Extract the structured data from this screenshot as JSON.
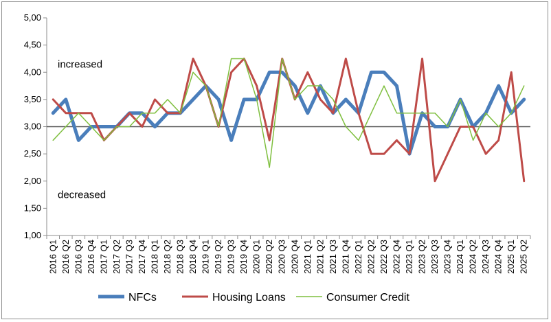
{
  "chart_data": {
    "type": "line",
    "title": "",
    "xlabel": "",
    "ylabel": "",
    "ylim": [
      1.0,
      5.0
    ],
    "yticks": [
      "1,00",
      "1,50",
      "2,00",
      "2,50",
      "3,00",
      "3,50",
      "4,00",
      "4,50",
      "5,00"
    ],
    "grid": false,
    "legend_position": "bottom",
    "annotations": [
      {
        "text": "increased",
        "y": 4.15
      },
      {
        "text": "decreased",
        "y": 1.75
      }
    ],
    "categories": [
      "2016 Q1",
      "2016 Q2",
      "2016 Q3",
      "2016 Q4",
      "2017 Q1",
      "2017 Q2",
      "2017 Q3",
      "2017 Q4",
      "2018 Q1",
      "2018 Q2",
      "2018 Q3",
      "2018 Q4",
      "2019 Q1",
      "2019 Q2",
      "2019 Q3",
      "2019 Q4",
      "2020 Q1",
      "2020 Q2",
      "2020 Q3",
      "2020 Q4",
      "2021 Q1",
      "2021 Q2",
      "2021 Q3",
      "2021 Q4",
      "2022 Q1",
      "2022 Q2",
      "2022 Q3",
      "2022 Q4",
      "2023 Q1",
      "2023 Q2",
      "2023 Q3",
      "2023 Q4",
      "2024 Q1",
      "2024 Q2",
      "2024 Q3",
      "2024 Q4",
      "2025 Q1",
      "2025 Q2"
    ],
    "series": [
      {
        "name": "NFCs",
        "color": "#4a7ebb",
        "width": 5,
        "values": [
          3.25,
          3.5,
          2.75,
          3.0,
          3.0,
          3.0,
          3.25,
          3.25,
          3.0,
          3.25,
          3.25,
          3.5,
          3.75,
          3.5,
          2.75,
          3.5,
          3.5,
          4.0,
          4.0,
          3.75,
          3.25,
          3.75,
          3.25,
          3.5,
          3.25,
          4.0,
          4.0,
          3.75,
          2.5,
          3.25,
          3.0,
          3.0,
          3.5,
          3.0,
          3.25,
          3.75,
          3.25,
          3.5
        ]
      },
      {
        "name": "Housing Loans",
        "color": "#be4b48",
        "width": 3,
        "values": [
          3.5,
          3.25,
          3.25,
          3.25,
          2.75,
          3.0,
          3.25,
          3.0,
          3.5,
          3.25,
          3.25,
          4.25,
          3.75,
          3.0,
          4.0,
          4.25,
          3.75,
          2.75,
          4.25,
          3.5,
          4.0,
          3.5,
          3.25,
          4.25,
          3.25,
          2.5,
          2.5,
          2.75,
          2.5,
          4.25,
          2.0,
          2.5,
          3.0,
          3.0,
          2.5,
          2.75,
          4.0,
          2.0
        ]
      },
      {
        "name": "Consumer Credit",
        "color": "#7fbf3f",
        "width": 1.5,
        "values": [
          2.75,
          3.0,
          3.25,
          3.0,
          2.75,
          3.0,
          3.0,
          3.25,
          3.25,
          3.5,
          3.25,
          4.0,
          3.75,
          3.0,
          4.25,
          4.25,
          3.5,
          2.25,
          4.25,
          3.5,
          3.75,
          3.75,
          3.5,
          3.0,
          2.75,
          3.25,
          3.75,
          3.25,
          3.25,
          3.25,
          3.25,
          3.0,
          3.5,
          2.75,
          3.25,
          3.0,
          3.25,
          3.75
        ]
      }
    ]
  }
}
